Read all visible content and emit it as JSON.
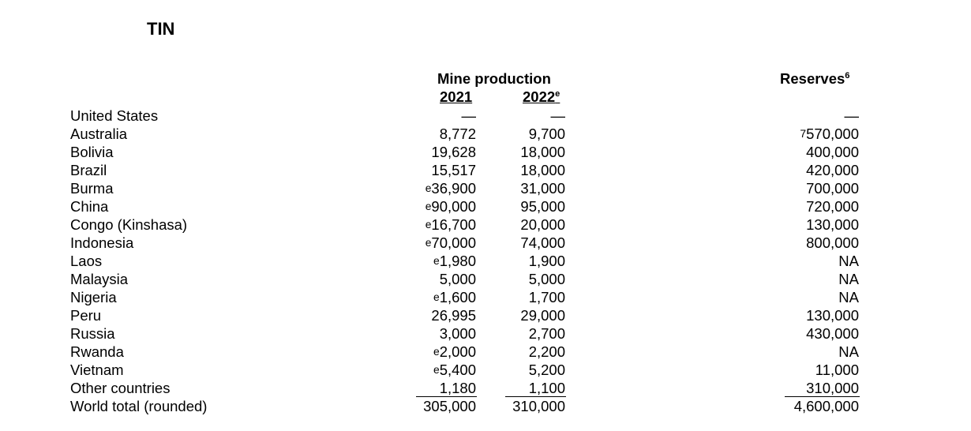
{
  "title": "TIN",
  "headers": {
    "mine_production": "Mine production",
    "year_2021": "2021",
    "year_2022": "2022",
    "year_2022_note": "e",
    "reserves": "Reserves",
    "reserves_note": "6"
  },
  "rows": [
    {
      "country": "United States",
      "y2021_prefix": "",
      "y2021": "—",
      "y2022": "—",
      "reserves_prefix": "",
      "reserves": "—"
    },
    {
      "country": "Australia",
      "y2021_prefix": "",
      "y2021": "8,772",
      "y2022": "9,700",
      "reserves_prefix": "7",
      "reserves": "570,000"
    },
    {
      "country": "Bolivia",
      "y2021_prefix": "",
      "y2021": "19,628",
      "y2022": "18,000",
      "reserves_prefix": "",
      "reserves": "400,000"
    },
    {
      "country": "Brazil",
      "y2021_prefix": "",
      "y2021": "15,517",
      "y2022": "18,000",
      "reserves_prefix": "",
      "reserves": "420,000"
    },
    {
      "country": "Burma",
      "y2021_prefix": "e",
      "y2021": "36,900",
      "y2022": "31,000",
      "reserves_prefix": "",
      "reserves": "700,000"
    },
    {
      "country": "China",
      "y2021_prefix": "e",
      "y2021": "90,000",
      "y2022": "95,000",
      "reserves_prefix": "",
      "reserves": "720,000"
    },
    {
      "country": "Congo (Kinshasa)",
      "y2021_prefix": "e",
      "y2021": "16,700",
      "y2022": "20,000",
      "reserves_prefix": "",
      "reserves": "130,000"
    },
    {
      "country": "Indonesia",
      "y2021_prefix": "e",
      "y2021": "70,000",
      "y2022": "74,000",
      "reserves_prefix": "",
      "reserves": "800,000"
    },
    {
      "country": "Laos",
      "y2021_prefix": "e",
      "y2021": "1,980",
      "y2022": "1,900",
      "reserves_prefix": "",
      "reserves": "NA"
    },
    {
      "country": "Malaysia",
      "y2021_prefix": "",
      "y2021": "5,000",
      "y2022": "5,000",
      "reserves_prefix": "",
      "reserves": "NA"
    },
    {
      "country": "Nigeria",
      "y2021_prefix": "e",
      "y2021": "1,600",
      "y2022": "1,700",
      "reserves_prefix": "",
      "reserves": "NA"
    },
    {
      "country": "Peru",
      "y2021_prefix": "",
      "y2021": "26,995",
      "y2022": "29,000",
      "reserves_prefix": "",
      "reserves": "130,000"
    },
    {
      "country": "Russia",
      "y2021_prefix": "",
      "y2021": "3,000",
      "y2022": "2,700",
      "reserves_prefix": "",
      "reserves": "430,000"
    },
    {
      "country": "Rwanda",
      "y2021_prefix": "e",
      "y2021": "2,000",
      "y2022": "2,200",
      "reserves_prefix": "",
      "reserves": "NA"
    },
    {
      "country": "Vietnam",
      "y2021_prefix": "e",
      "y2021": "5,400",
      "y2022": "5,200",
      "reserves_prefix": "",
      "reserves": "11,000"
    },
    {
      "country": "Other countries",
      "y2021_prefix": "",
      "y2021": "1,180",
      "y2022": "1,100",
      "reserves_prefix": "",
      "reserves": "310,000"
    },
    {
      "country": "World total (rounded)",
      "y2021_prefix": "",
      "y2021": "305,000",
      "y2022": "310,000",
      "reserves_prefix": "",
      "reserves": "4,600,000"
    }
  ]
}
